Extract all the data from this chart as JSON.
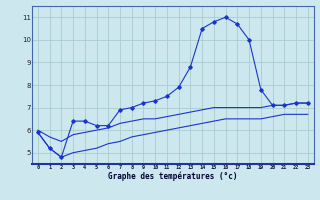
{
  "title": "Graphe des températures (°c)",
  "bg_color": "#cce8ee",
  "grid_color": "#aacccc",
  "line_color": "#1a35cc",
  "hours": [
    0,
    1,
    2,
    3,
    4,
    5,
    6,
    7,
    8,
    9,
    10,
    11,
    12,
    13,
    14,
    15,
    16,
    17,
    18,
    19,
    20,
    21,
    22,
    23
  ],
  "curve_main": [
    5.9,
    5.2,
    4.8,
    6.4,
    6.4,
    6.2,
    6.2,
    6.9,
    7.0,
    7.2,
    7.3,
    7.5,
    7.9,
    8.8,
    10.5,
    10.8,
    11.0,
    10.7,
    10.0,
    7.8,
    7.1,
    7.1,
    7.2,
    7.2
  ],
  "curve_avg": [
    6.0,
    5.7,
    5.5,
    5.8,
    5.9,
    6.0,
    6.1,
    6.3,
    6.4,
    6.5,
    6.5,
    6.6,
    6.7,
    6.8,
    6.9,
    7.0,
    7.0,
    7.0,
    7.0,
    7.0,
    7.1,
    7.1,
    7.2,
    7.2
  ],
  "curve_min": [
    5.9,
    5.2,
    4.8,
    5.0,
    5.1,
    5.2,
    5.4,
    5.5,
    5.7,
    5.8,
    5.9,
    6.0,
    6.1,
    6.2,
    6.3,
    6.4,
    6.5,
    6.5,
    6.5,
    6.5,
    6.6,
    6.7,
    6.7,
    6.7
  ],
  "ylim": [
    4.5,
    11.5
  ],
  "yticks": [
    5,
    6,
    7,
    8,
    9,
    10,
    11
  ],
  "xtick_labels": [
    "0",
    "1",
    "2",
    "3",
    "4",
    "5",
    "6",
    "7",
    "8",
    "9",
    "10",
    "11",
    "12",
    "13",
    "14",
    "15",
    "16",
    "17",
    "18",
    "19",
    "20",
    "21",
    "22",
    "23"
  ]
}
